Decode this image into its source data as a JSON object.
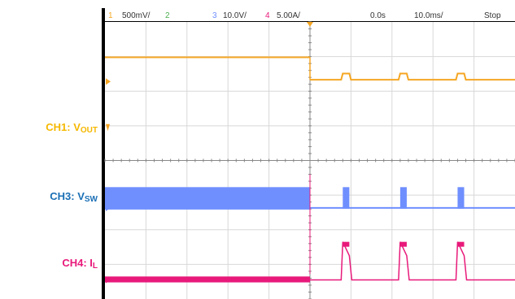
{
  "side_labels": {
    "ch1": {
      "main": "CH1: V",
      "sub": "OUT",
      "color": "#f5b800"
    },
    "ch3": {
      "main": "CH3: V",
      "sub": "SW",
      "color": "#1a6fb5"
    },
    "ch4": {
      "main": "CH4: I",
      "sub": "L",
      "color": "#e8197a"
    }
  },
  "scope_header": {
    "ch1_num": "1",
    "ch1_scale": "500mV/",
    "ch2_num": "2",
    "ch3_num": "3",
    "ch3_scale": "10.0V/",
    "ch4_num": "4",
    "ch4_scale": "5.00A/",
    "time_offset": "0.0s",
    "timebase": "10.0ms/",
    "run_state": "Stop"
  },
  "colors": {
    "ch1": "#f5a623",
    "ch2": "#4caf50",
    "ch3": "#6f8fff",
    "ch4": "#e8197a",
    "grid": "#d8d8d8",
    "background": "#ffffff"
  },
  "chart_data": {
    "type": "line",
    "x_divisions": 10,
    "y_divisions": 8,
    "trigger_time_ms": 0,
    "timebase_ms_per_div": 10,
    "series": [
      {
        "name": "CH1: VOUT",
        "channel": 1,
        "before_trigger_div": 0.7,
        "after_trigger_div": 0.05,
        "pulse_height_div": 0.18
      },
      {
        "name": "CH3: VSW",
        "channel": 3,
        "before_trigger_div": 0.6,
        "after_trigger_div": 0.0,
        "pulse_height_div": 0.6
      },
      {
        "name": "CH4: IL",
        "channel": 4,
        "before_trigger_div": 0.1,
        "after_trigger_div": 0.0,
        "pulse_height_div": 1.1
      }
    ],
    "bursts_ms": [
      8,
      22,
      36
    ],
    "burst_width_ms": 1.6
  }
}
